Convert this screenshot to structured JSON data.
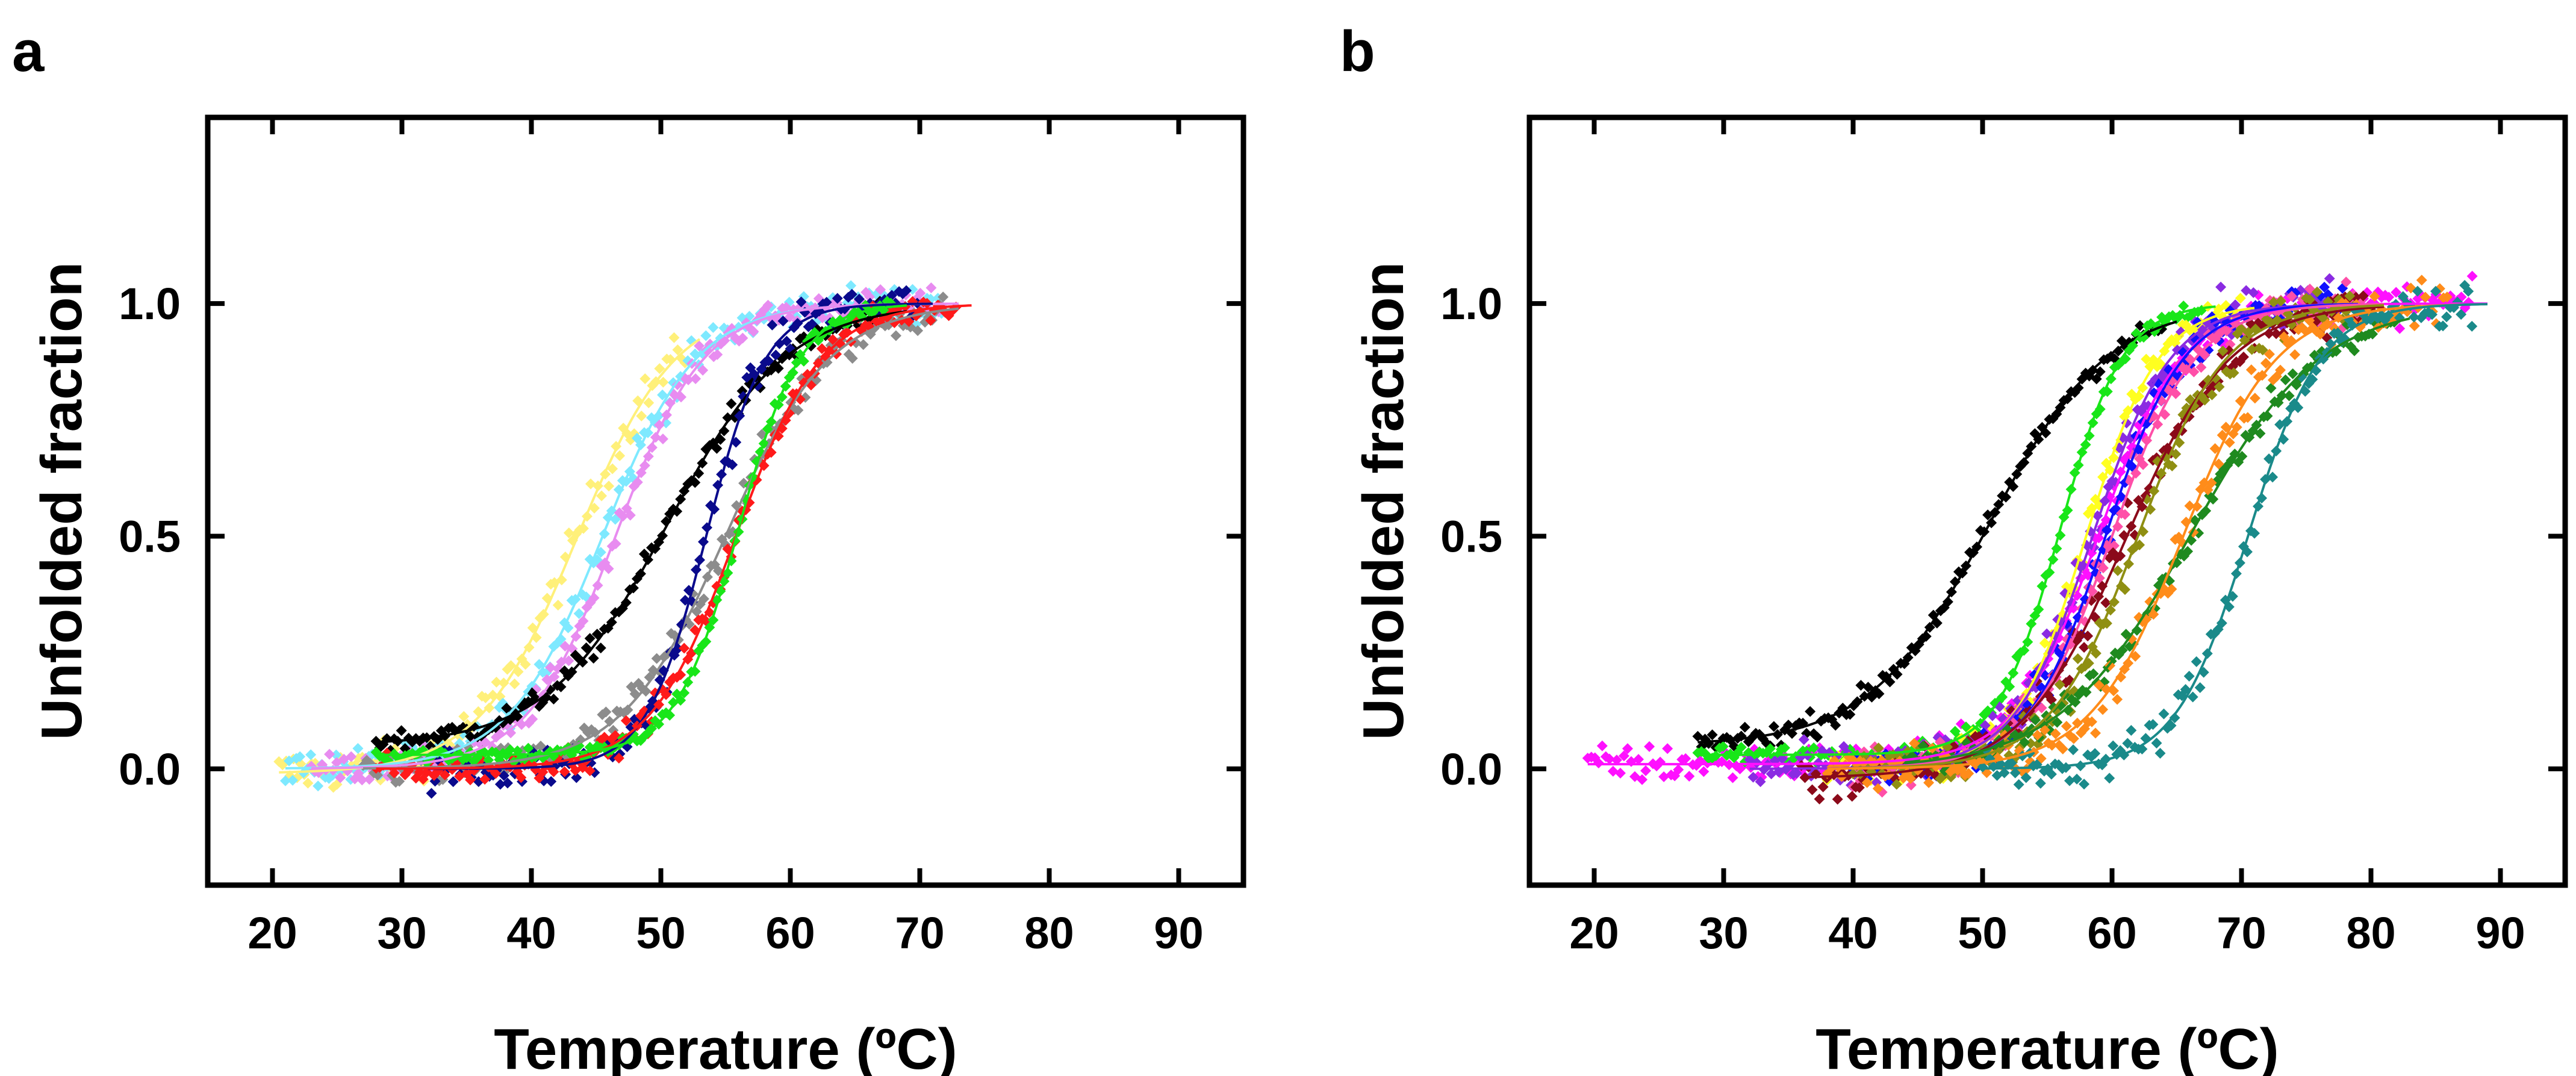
{
  "figure": {
    "panels": [
      "a",
      "b"
    ]
  },
  "chart_data": [
    {
      "panel": "a",
      "type": "scatter",
      "xlabel": "Temperature (ºC)",
      "ylabel": "Unfolded fraction",
      "xlim": [
        15,
        95
      ],
      "ylim": [
        -0.25,
        1.4
      ],
      "xticks": [
        20,
        30,
        40,
        50,
        60,
        70,
        80,
        90
      ],
      "yticks": [
        0.0,
        0.5,
        1.0
      ],
      "xtick_labels": [
        "20",
        "30",
        "40",
        "50",
        "60",
        "70",
        "80",
        "90"
      ],
      "ytick_labels": [
        "0.0",
        "0.5",
        "1.0"
      ],
      "grid": false,
      "series": [
        {
          "name": "yellow",
          "color": "#fff07a",
          "tm": 43.5,
          "width": 3.8,
          "xmin": 20.5,
          "xmax": 52,
          "base": -0.01,
          "noise": 0.045
        },
        {
          "name": "cyan",
          "color": "#7ee9ff",
          "tm": 45.5,
          "width": 3.6,
          "xmin": 21,
          "xmax": 72,
          "base": 0.0,
          "noise": 0.04
        },
        {
          "name": "violet",
          "color": "#e88cf0",
          "tm": 46.5,
          "width": 3.4,
          "xmin": 23,
          "xmax": 72,
          "base": 0.0,
          "noise": 0.03
        },
        {
          "name": "black",
          "color": "#000000",
          "tm": 50.5,
          "width": 4.6,
          "xmin": 28,
          "xmax": 68,
          "base": 0.05,
          "noise": 0.025
        },
        {
          "name": "gray",
          "color": "#8c8c8c",
          "tm": 55.0,
          "width": 4.0,
          "xmin": 27,
          "xmax": 72,
          "base": 0.0,
          "noise": 0.04
        },
        {
          "name": "navy",
          "color": "#0a0a8c",
          "tm": 53.5,
          "width": 2.3,
          "xmin": 32,
          "xmax": 70,
          "base": 0.0,
          "noise": 0.045
        },
        {
          "name": "red",
          "color": "#ff1a1a",
          "tm": 55.8,
          "width": 3.3,
          "xmin": 28,
          "xmax": 73,
          "base": 0.0,
          "noise": 0.03
        },
        {
          "name": "green",
          "color": "#19e619",
          "tm": 56.0,
          "width": 2.4,
          "xmin": 28,
          "xmax": 68,
          "base": 0.03,
          "noise": 0.018
        }
      ]
    },
    {
      "panel": "b",
      "type": "scatter",
      "xlabel": "Temperature (ºC)",
      "ylabel": "Unfolded fraction",
      "xlim": [
        15,
        95
      ],
      "ylim": [
        -0.25,
        1.4
      ],
      "xticks": [
        20,
        30,
        40,
        50,
        60,
        70,
        80,
        90
      ],
      "yticks": [
        0.0,
        0.5,
        1.0
      ],
      "xtick_labels": [
        "20",
        "30",
        "40",
        "50",
        "60",
        "70",
        "80",
        "90"
      ],
      "ytick_labels": [
        "0.0",
        "0.5",
        "1.0"
      ],
      "grid": false,
      "series": [
        {
          "name": "magenta",
          "color": "#ff10ff",
          "tm": 59.0,
          "width": 3.2,
          "xmin": 19.5,
          "xmax": 88,
          "base": 0.01,
          "noise": 0.04
        },
        {
          "name": "black",
          "color": "#000000",
          "tm": 50.5,
          "width": 4.6,
          "xmin": 28,
          "xmax": 64,
          "base": 0.05,
          "noise": 0.025
        },
        {
          "name": "green",
          "color": "#19e619",
          "tm": 56.0,
          "width": 2.4,
          "xmin": 28,
          "xmax": 67,
          "base": 0.03,
          "noise": 0.018
        },
        {
          "name": "yellow",
          "color": "#ffff20",
          "tm": 58.0,
          "width": 2.8,
          "xmin": 38,
          "xmax": 70,
          "base": 0.0,
          "noise": 0.04
        },
        {
          "name": "purple",
          "color": "#8a2be2",
          "tm": 58.5,
          "width": 3.0,
          "xmin": 32,
          "xmax": 78,
          "base": 0.0,
          "noise": 0.05
        },
        {
          "name": "blue",
          "color": "#1010ff",
          "tm": 59.5,
          "width": 3.0,
          "xmin": 40,
          "xmax": 78,
          "base": 0.0,
          "noise": 0.045
        },
        {
          "name": "pink",
          "color": "#ff4fa8",
          "tm": 60.0,
          "width": 3.2,
          "xmin": 40,
          "xmax": 80,
          "base": 0.0,
          "noise": 0.05
        },
        {
          "name": "maroon",
          "color": "#8b0a1a",
          "tm": 61.0,
          "width": 4.0,
          "xmin": 36,
          "xmax": 80,
          "base": -0.02,
          "noise": 0.05
        },
        {
          "name": "olive",
          "color": "#8f8f12",
          "tm": 62.0,
          "width": 3.4,
          "xmin": 40,
          "xmax": 80,
          "base": 0.0,
          "noise": 0.05
        },
        {
          "name": "forest green",
          "color": "#1f8a1f",
          "tm": 66.0,
          "width": 5.0,
          "xmin": 44,
          "xmax": 82,
          "base": 0.0,
          "noise": 0.03
        },
        {
          "name": "orange",
          "color": "#ff8c1a",
          "tm": 65.5,
          "width": 3.6,
          "xmin": 38,
          "xmax": 86,
          "base": 0.0,
          "noise": 0.05
        },
        {
          "name": "teal",
          "color": "#1a8a8a",
          "tm": 70.5,
          "width": 2.8,
          "xmin": 50,
          "xmax": 88,
          "base": 0.0,
          "noise": 0.045
        }
      ]
    }
  ]
}
